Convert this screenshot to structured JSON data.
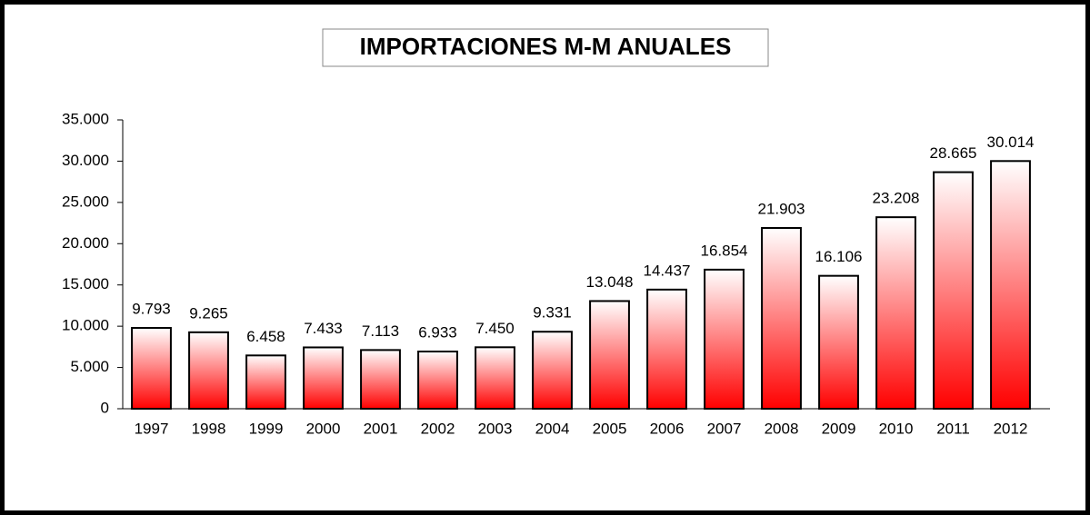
{
  "chart_data": {
    "type": "bar",
    "title": "IMPORTACIONES M-M ANUALES",
    "categories": [
      "1997",
      "1998",
      "1999",
      "2000",
      "2001",
      "2002",
      "2003",
      "2004",
      "2005",
      "2006",
      "2007",
      "2008",
      "2009",
      "2010",
      "2011",
      "2012"
    ],
    "values": [
      9793,
      9265,
      6458,
      7433,
      7113,
      6933,
      7450,
      9331,
      13048,
      14437,
      16854,
      21903,
      16106,
      23208,
      28665,
      30014
    ],
    "value_labels": [
      "9.793",
      "9.265",
      "6.458",
      "7.433",
      "7.113",
      "6.933",
      "7.450",
      "9.331",
      "13.048",
      "14.437",
      "16.854",
      "21.903",
      "16.106",
      "23.208",
      "28.665",
      "30.014"
    ],
    "color": "#ff0000",
    "ylim": [
      0,
      35000
    ],
    "yticks": [
      0,
      {
        "value": 5000,
        "label": "5.000"
      },
      {
        "value": 10000,
        "label": "10.000"
      },
      {
        "value": 15000,
        "label": "15.000"
      },
      {
        "value": 20000,
        "label": "20.000"
      },
      {
        "value": 25000,
        "label": "25.000"
      },
      {
        "value": 30000,
        "label": "30.000"
      },
      {
        "value": 35000,
        "label": "35.000"
      }
    ],
    "grid": false
  }
}
